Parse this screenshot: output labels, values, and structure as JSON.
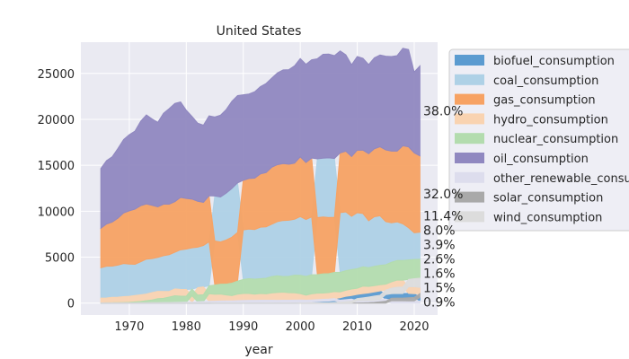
{
  "chart_data": {
    "type": "area",
    "title": "United States",
    "xlabel": "year",
    "ylabel": "",
    "xlim": [
      1961.5,
      2024.1
    ],
    "ylim": [
      -1300,
      28400
    ],
    "xticks": [
      1970,
      1980,
      1990,
      2000,
      2010,
      2020
    ],
    "yticks": [
      0,
      5000,
      10000,
      15000,
      20000,
      25000
    ],
    "grid": true,
    "legend_position": "outside-right",
    "x": [
      1965,
      1966,
      1967,
      1968,
      1969,
      1970,
      1971,
      1972,
      1973,
      1974,
      1975,
      1976,
      1977,
      1978,
      1979,
      1980,
      1981,
      1982,
      1983,
      1984,
      1985,
      1986,
      1987,
      1988,
      1989,
      1990,
      1991,
      1992,
      1993,
      1994,
      1995,
      1996,
      1997,
      1998,
      1999,
      2000,
      2001,
      2002,
      2003,
      2004,
      2005,
      2006,
      2007,
      2008,
      2009,
      2010,
      2011,
      2012,
      2013,
      2014,
      2015,
      2016,
      2017,
      2018,
      2019,
      2020,
      2021
    ],
    "series": [
      {
        "name": "biofuel_consumption",
        "color": "#5b9bd0",
        "values": [
          0,
          0,
          0,
          0,
          0,
          0,
          0,
          0,
          0,
          0,
          0,
          0,
          0,
          0,
          0,
          5,
          10,
          15,
          25,
          30,
          35,
          40,
          40,
          40,
          40,
          40,
          40,
          45,
          50,
          55,
          60,
          50,
          60,
          65,
          70,
          75,
          80,
          95,
          120,
          150,
          170,
          210,
          270,
          360,
          400,
          450,
          460,
          450,
          450,
          470,
          470,
          490,
          490,
          480,
          470,
          400,
          390
        ]
      },
      {
        "name": "coal_consumption",
        "color": "#aed1e6",
        "values": [
          3300,
          3450,
          3400,
          3500,
          3600,
          3500,
          3400,
          3600,
          3800,
          3700,
          3700,
          3900,
          4000,
          4000,
          4300,
          4400,
          4500,
          4400,
          4500,
          4800,
          4900,
          4900,
          5100,
          5300,
          5400,
          5400,
          5400,
          5400,
          5600,
          5600,
          5700,
          5900,
          6100,
          6100,
          6100,
          6400,
          6200,
          6300,
          6400,
          6400,
          6500,
          6400,
          6500,
          6400,
          5800,
          6100,
          5800,
          5100,
          5400,
          5400,
          4700,
          4300,
          4200,
          4000,
          3500,
          2900,
          2950
        ]
      },
      {
        "name": "gas_consumption",
        "color": "#f7a263",
        "values": [
          4300,
          4600,
          4800,
          5100,
          5500,
          5800,
          6000,
          6100,
          6000,
          5800,
          5500,
          5600,
          5500,
          5500,
          5700,
          5500,
          5300,
          5000,
          4700,
          5000,
          4800,
          4600,
          4800,
          5000,
          5300,
          5400,
          5500,
          5600,
          5800,
          5900,
          6200,
          6200,
          6200,
          6100,
          6100,
          6500,
          6200,
          6400,
          6200,
          6200,
          6100,
          6000,
          6500,
          6600,
          6500,
          6800,
          6900,
          7300,
          7400,
          7500,
          7800,
          7800,
          7700,
          8500,
          8800,
          8700,
          8300
        ]
      },
      {
        "name": "hydro_consumption",
        "color": "#f9d3b1",
        "values": [
          520,
          530,
          590,
          590,
          650,
          660,
          700,
          720,
          720,
          800,
          790,
          740,
          610,
          740,
          750,
          730,
          690,
          810,
          860,
          830,
          750,
          760,
          650,
          570,
          700,
          760,
          750,
          670,
          740,
          690,
          800,
          860,
          880,
          820,
          800,
          700,
          560,
          670,
          710,
          690,
          700,
          750,
          640,
          660,
          710,
          670,
          820,
          710,
          690,
          680,
          640,
          690,
          780,
          750,
          730,
          760,
          680
        ]
      },
      {
        "name": "nuclear_consumption",
        "color": "#b3dcae",
        "values": [
          10,
          15,
          20,
          30,
          40,
          60,
          100,
          150,
          230,
          300,
          440,
          470,
          600,
          730,
          670,
          660,
          720,
          740,
          740,
          860,
          1000,
          1070,
          1180,
          1360,
          1420,
          1520,
          1610,
          1630,
          1610,
          1700,
          1780,
          1810,
          1700,
          1780,
          1910,
          1990,
          2030,
          2070,
          2020,
          2080,
          2070,
          2090,
          2130,
          2130,
          2110,
          2130,
          2100,
          2040,
          2100,
          2110,
          2110,
          2130,
          2130,
          2130,
          2130,
          2090,
          2060
        ]
      },
      {
        "name": "oil_consumption",
        "color": "#9088c0",
        "values": [
          6500,
          6900,
          7100,
          7600,
          8000,
          8300,
          8500,
          9200,
          9700,
          9400,
          9200,
          9900,
          10400,
          10700,
          10400,
          9600,
          9000,
          8500,
          8400,
          8700,
          8600,
          8900,
          9100,
          9500,
          9500,
          9300,
          9200,
          9400,
          9500,
          9700,
          9700,
          10000,
          10200,
          10300,
          10600,
          10700,
          10700,
          10700,
          10900,
          11300,
          11300,
          11200,
          11100,
          10500,
          10000,
          10200,
          10000,
          9700,
          9900,
          10000,
          10200,
          10300,
          10400,
          10600,
          10600,
          8800,
          9800
        ]
      },
      {
        "name": "other_renewable_consumption",
        "color": "#dddded",
        "values": [
          10,
          12,
          14,
          16,
          18,
          20,
          25,
          30,
          35,
          40,
          45,
          50,
          60,
          70,
          80,
          90,
          100,
          120,
          140,
          160,
          170,
          180,
          190,
          200,
          220,
          240,
          250,
          250,
          250,
          250,
          240,
          240,
          240,
          240,
          240,
          240,
          210,
          220,
          220,
          220,
          220,
          220,
          220,
          230,
          230,
          240,
          240,
          250,
          250,
          250,
          250,
          250,
          250,
          250,
          240,
          240,
          230
        ]
      },
      {
        "name": "solar_consumption",
        "color": "#a9a9a9",
        "values": [
          0,
          0,
          0,
          0,
          0,
          0,
          0,
          0,
          0,
          0,
          0,
          0,
          0,
          0,
          0,
          0,
          0,
          0,
          0,
          0,
          0,
          0,
          0,
          0,
          0,
          0,
          0,
          0,
          0,
          0,
          0,
          0,
          0,
          0,
          0,
          2,
          2,
          2,
          2,
          2,
          2,
          2,
          2,
          5,
          8,
          12,
          20,
          40,
          80,
          140,
          200,
          280,
          300,
          300,
          340,
          380,
          410
        ]
      },
      {
        "name": "wind_consumption",
        "color": "#dcdcdc",
        "values": [
          0,
          0,
          0,
          0,
          0,
          0,
          0,
          0,
          0,
          0,
          0,
          0,
          0,
          0,
          0,
          0,
          0,
          0,
          0,
          0,
          3,
          5,
          5,
          2,
          6,
          8,
          7,
          7,
          7,
          9,
          8,
          8,
          8,
          8,
          11,
          14,
          16,
          25,
          27,
          35,
          45,
          67,
          86,
          140,
          190,
          240,
          310,
          370,
          430,
          460,
          500,
          600,
          690,
          720,
          790,
          880,
          1000
        ]
      }
    ],
    "annotations": [
      {
        "series": "oil_consumption",
        "text": "38.0%"
      },
      {
        "series": "gas_consumption",
        "text": "32.0%"
      },
      {
        "series": "coal_consumption",
        "text": "11.4%"
      },
      {
        "series": "nuclear_consumption",
        "text": "8.0%"
      },
      {
        "series": "wind_consumption",
        "text": "3.9%"
      },
      {
        "series": "hydro_consumption",
        "text": "2.6%"
      },
      {
        "series": "solar_consumption",
        "text": "1.6%"
      },
      {
        "series": "biofuel_consumption",
        "text": "1.5%"
      },
      {
        "series": "other_renewable_consumption",
        "text": "0.9%"
      }
    ]
  }
}
